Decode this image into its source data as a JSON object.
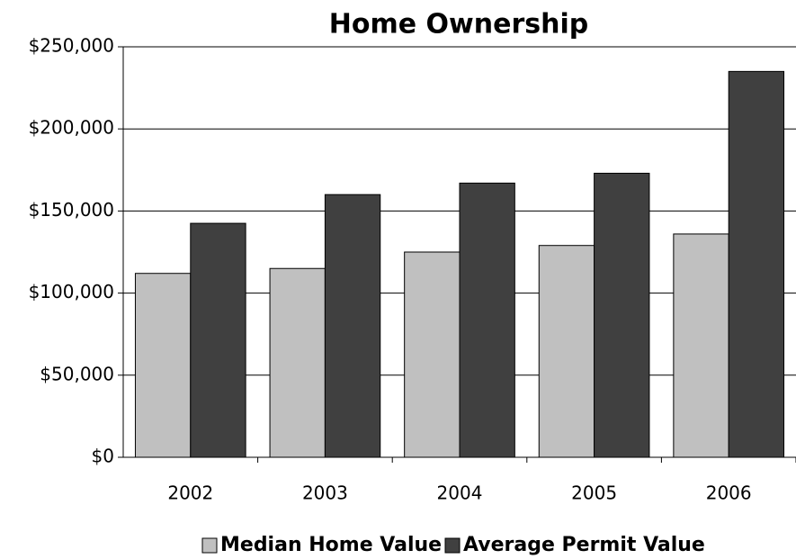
{
  "chart_data": {
    "type": "bar",
    "title": "Home Ownership",
    "categories": [
      "2002",
      "2003",
      "2004",
      "2005",
      "2006"
    ],
    "series": [
      {
        "name": "Median Home Value",
        "color": "#c0c0c0",
        "values": [
          112000,
          115000,
          125000,
          129000,
          136000
        ]
      },
      {
        "name": "Average Permit Value",
        "color": "#404040",
        "values": [
          142500,
          160000,
          167000,
          173000,
          235000
        ]
      }
    ],
    "ylim": [
      0,
      250000
    ],
    "yticks": [
      {
        "value": 0,
        "label": "$0"
      },
      {
        "value": 50000,
        "label": "$50,000"
      },
      {
        "value": 100000,
        "label": "$100,000"
      },
      {
        "value": 150000,
        "label": "$150,000"
      },
      {
        "value": 200000,
        "label": "$200,000"
      },
      {
        "value": 250000,
        "label": "$250,000"
      }
    ],
    "grid": true,
    "legend": "bottom"
  }
}
